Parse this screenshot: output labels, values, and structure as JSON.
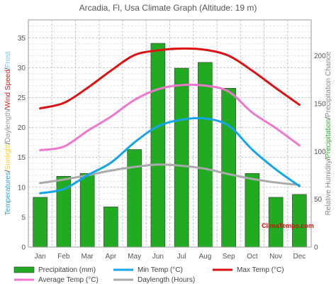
{
  "chart_data": {
    "type": "bar",
    "title": "Arcadia, Fl, Usa Climate Graph (Altitude: 19 m)",
    "categories": [
      "Jan",
      "Feb",
      "Mar",
      "Apr",
      "May",
      "Jun",
      "Jul",
      "Aug",
      "Sep",
      "Oct",
      "Nov",
      "Dec"
    ],
    "left_axis": {
      "label_parts": [
        {
          "text": "Temperatures",
          "color": "#22aadd"
        },
        {
          "text": "/",
          "color": "#333333"
        },
        {
          "text": "Sunlight",
          "color": "#ffd21a"
        },
        {
          "text": "/",
          "color": "#333333"
        },
        {
          "text": "Daylength",
          "color": "#999999"
        },
        {
          "text": "/",
          "color": "#333333"
        },
        {
          "text": "Wind Speed",
          "color": "#dd2222"
        },
        {
          "text": "/",
          "color": "#333333"
        },
        {
          "text": "Frost",
          "color": "#66ccff"
        }
      ],
      "ylim": [
        0,
        38
      ],
      "ticks": [
        0,
        5,
        10,
        15,
        20,
        25,
        30,
        35
      ]
    },
    "right_axis": {
      "label_parts": [
        {
          "text": "Relative Humidity",
          "color": "#888888"
        },
        {
          "text": "/",
          "color": "#333333"
        },
        {
          "text": "Precipitation",
          "color": "#22aa22"
        },
        {
          "text": "/",
          "color": "#333333"
        },
        {
          "text": "Precipitation Chance",
          "color": "#888888"
        }
      ],
      "ylim": [
        0,
        237.5
      ],
      "ticks": [
        0,
        50,
        100,
        150,
        200
      ]
    },
    "grid": true,
    "legend_position": "bottom",
    "series": [
      {
        "name": "Precipitation (mm)",
        "kind": "bar",
        "axis": "right",
        "color": "#22aa22",
        "values": [
          52,
          74,
          77,
          42,
          102,
          213,
          187,
          193,
          166,
          77,
          52,
          55
        ]
      },
      {
        "name": "Min Temp (°C)",
        "kind": "line",
        "axis": "left",
        "color": "#14a6e8",
        "values": [
          9.0,
          9.7,
          12.0,
          14.1,
          17.5,
          20.2,
          21.3,
          21.5,
          20.3,
          16.3,
          13.0,
          10.2
        ]
      },
      {
        "name": "Max Temp (°C)",
        "kind": "line",
        "axis": "left",
        "color": "#dd1111",
        "values": [
          23.2,
          24.1,
          26.6,
          29.5,
          32.1,
          32.9,
          33.2,
          33.0,
          32.0,
          29.5,
          26.6,
          23.8
        ]
      },
      {
        "name": "Average Temp (°C)",
        "kind": "line",
        "axis": "left",
        "color": "#ee77cc",
        "values": [
          16.2,
          16.8,
          19.4,
          21.8,
          24.6,
          26.4,
          27.1,
          27.0,
          26.0,
          22.5,
          19.9,
          17.0
        ]
      },
      {
        "name": "Daylength (Hours)",
        "kind": "line",
        "axis": "left",
        "color": "#aaaaaa",
        "values": [
          10.7,
          11.3,
          12.0,
          12.8,
          13.4,
          13.8,
          13.6,
          13.1,
          12.2,
          11.4,
          10.8,
          10.4
        ]
      }
    ],
    "watermark": "ClimaTemps.com"
  }
}
